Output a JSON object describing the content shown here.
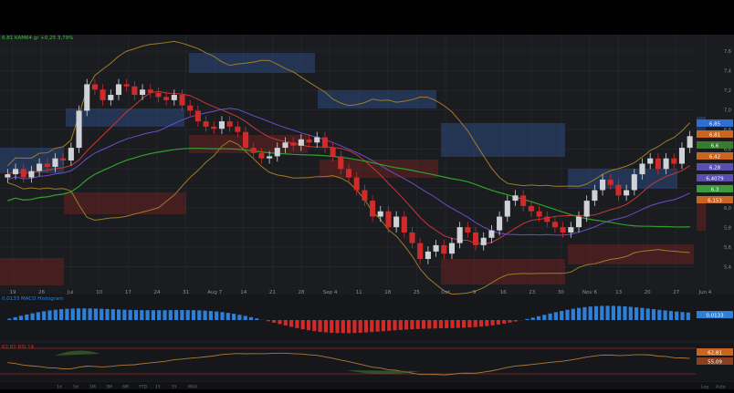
{
  "window": {
    "title": ""
  },
  "symbol_label": "6,81 KAM64 gr +0,25 3,79%",
  "macd_label": "0,0133 MACD Histogram",
  "rsi_label": "62,81 RSI 14",
  "x_ticks": [
    "19",
    "26",
    "Jul",
    "10",
    "17",
    "24",
    "31",
    "Aug 7",
    "14",
    "21",
    "28",
    "Sep 4",
    "11",
    "18",
    "25",
    "Oct",
    "9",
    "16",
    "23",
    "30",
    "Nov 6",
    "13",
    "20",
    "27",
    "Jun 4"
  ],
  "y_ticks": [
    "7,6",
    "7,4",
    "7,2",
    "7,0",
    "6,8",
    "6,6",
    "6,4",
    "6,2",
    "6,0",
    "5,8",
    "5,6",
    "5,4"
  ],
  "price_tags": [
    {
      "text": "6,85",
      "color": "#2e6fd1"
    },
    {
      "text": "6,81",
      "color": "#c8651f"
    },
    {
      "text": "6,6",
      "color": "#3a7a30"
    },
    {
      "text": "6,42",
      "color": "#c8651f"
    },
    {
      "text": "6,28",
      "color": "#5a4fb0"
    },
    {
      "text": "6,4079",
      "color": "#5a4fb0"
    },
    {
      "text": "6,3",
      "color": "#3c9a3c"
    },
    {
      "text": "6,153",
      "color": "#c8651f"
    }
  ],
  "macd_tag": "0,0133",
  "rsi_tags": [
    "62,81",
    "55,09"
  ],
  "toolbar": {
    "items": [
      "1d",
      "5d",
      "1M",
      "3M",
      "6M",
      "YTD",
      "1Y",
      "5Y",
      "MAX"
    ],
    "right": [
      "Log",
      "Auto"
    ]
  },
  "colors": {
    "up": "#cfd3d8",
    "down": "#d12a2a",
    "macd_pos": "#2f7fd6",
    "macd_neg": "#d12a2a",
    "bb": "#a07a28",
    "ma_green": "#2fa02f",
    "ma_purple": "#6a4ec8",
    "ma_red": "#c43a3a",
    "rsi": "#b07a3a"
  },
  "chart_data": {
    "type": "candlestick",
    "x_ticks": [
      "19",
      "26",
      "Jul",
      "10",
      "17",
      "24",
      "31",
      "Aug 7",
      "14",
      "21",
      "28",
      "Sep 4",
      "11",
      "18",
      "25",
      "Oct",
      "9",
      "16",
      "23",
      "30",
      "Nov 6",
      "13",
      "20",
      "27",
      "Jun 4"
    ],
    "y_range": [
      5.4,
      7.7
    ],
    "closes": [
      6.45,
      6.5,
      6.42,
      6.48,
      6.55,
      6.52,
      6.6,
      6.58,
      6.7,
      7.05,
      7.3,
      7.25,
      7.15,
      7.2,
      7.3,
      7.28,
      7.2,
      7.25,
      7.22,
      7.18,
      7.15,
      7.2,
      7.1,
      7.05,
      6.95,
      6.9,
      6.88,
      6.95,
      6.9,
      6.85,
      6.7,
      6.65,
      6.6,
      6.62,
      6.7,
      6.75,
      6.72,
      6.78,
      6.75,
      6.8,
      6.7,
      6.62,
      6.5,
      6.42,
      6.3,
      6.2,
      6.05,
      6.1,
      5.95,
      6.05,
      5.9,
      5.8,
      5.65,
      5.72,
      5.78,
      5.7,
      5.8,
      5.95,
      5.9,
      5.78,
      5.85,
      5.92,
      6.05,
      6.2,
      6.25,
      6.15,
      6.1,
      6.05,
      6.0,
      5.95,
      5.9,
      5.95,
      6.05,
      6.2,
      6.3,
      6.4,
      6.35,
      6.25,
      6.3,
      6.45,
      6.55,
      6.6,
      6.5,
      6.6,
      6.55,
      6.7,
      6.81
    ]
  }
}
